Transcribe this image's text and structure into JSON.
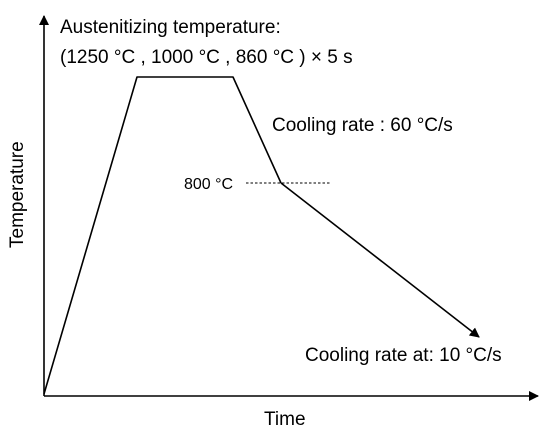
{
  "diagram": {
    "header_line1": "Austenitizing temperature:",
    "header_line2": "(1250  °C , 1000 °C , 860 °C ) × 5 s",
    "cooling_rate_1": "Cooling rate : 60 °C/s",
    "temp_marker": "800 °C",
    "cooling_rate_2": "Cooling rate at: 10 °C/s",
    "x_axis_label": "Time",
    "y_axis_label": "Temperature"
  }
}
